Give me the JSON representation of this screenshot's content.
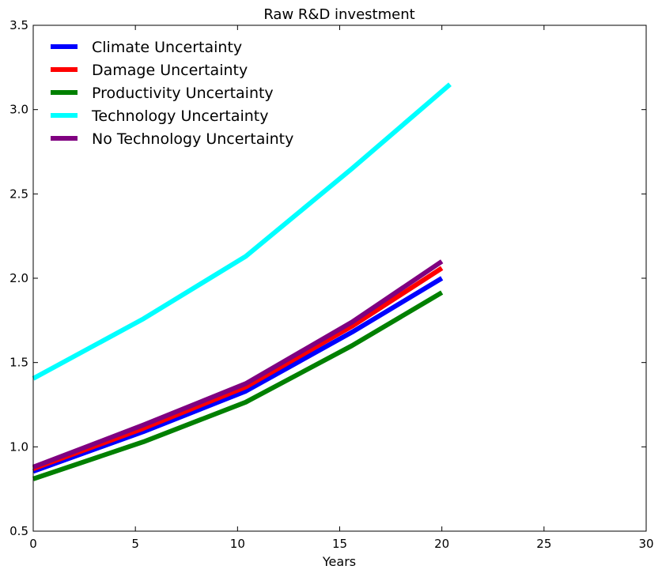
{
  "chart_data": {
    "type": "line",
    "title": "Raw R&D investment",
    "xlabel": "Years",
    "ylabel": "",
    "xlim": [
      0,
      30
    ],
    "ylim": [
      0.5,
      3.5
    ],
    "xticks": [
      0,
      5,
      10,
      15,
      20,
      25,
      30
    ],
    "yticks": [
      0.5,
      1.0,
      1.5,
      2.0,
      2.5,
      3.0,
      3.5
    ],
    "xtick_labels": [
      "0",
      "5",
      "10",
      "15",
      "20",
      "25",
      "30"
    ],
    "ytick_labels": [
      "0.5",
      "1.0",
      "1.5",
      "2.0",
      "2.5",
      "3.0",
      "3.5"
    ],
    "grid": false,
    "legend_position": "top-left",
    "series": [
      {
        "name": "Climate Uncertainty",
        "color": "#0000ff",
        "x": [
          0,
          5.4,
          10.4,
          15.6,
          20
        ],
        "y": [
          0.855,
          1.09,
          1.33,
          1.68,
          2.0
        ]
      },
      {
        "name": "Damage Uncertainty",
        "color": "#ff0000",
        "x": [
          0,
          5.4,
          10.4,
          15.6,
          20
        ],
        "y": [
          0.87,
          1.11,
          1.355,
          1.715,
          2.06
        ]
      },
      {
        "name": "Productivity Uncertainty",
        "color": "#008000",
        "x": [
          0,
          5.4,
          10.4,
          15.6,
          20
        ],
        "y": [
          0.81,
          1.03,
          1.265,
          1.6,
          1.915
        ]
      },
      {
        "name": "Technology Uncertainty",
        "color": "#00ffff",
        "x": [
          0,
          5.4,
          10.4,
          15.6,
          20.4
        ],
        "y": [
          1.405,
          1.76,
          2.13,
          2.65,
          3.15
        ]
      },
      {
        "name": "No Technology Uncertainty",
        "color": "#800080",
        "x": [
          0,
          5.4,
          10.4,
          15.6,
          20
        ],
        "y": [
          0.88,
          1.13,
          1.375,
          1.74,
          2.1
        ]
      }
    ]
  }
}
